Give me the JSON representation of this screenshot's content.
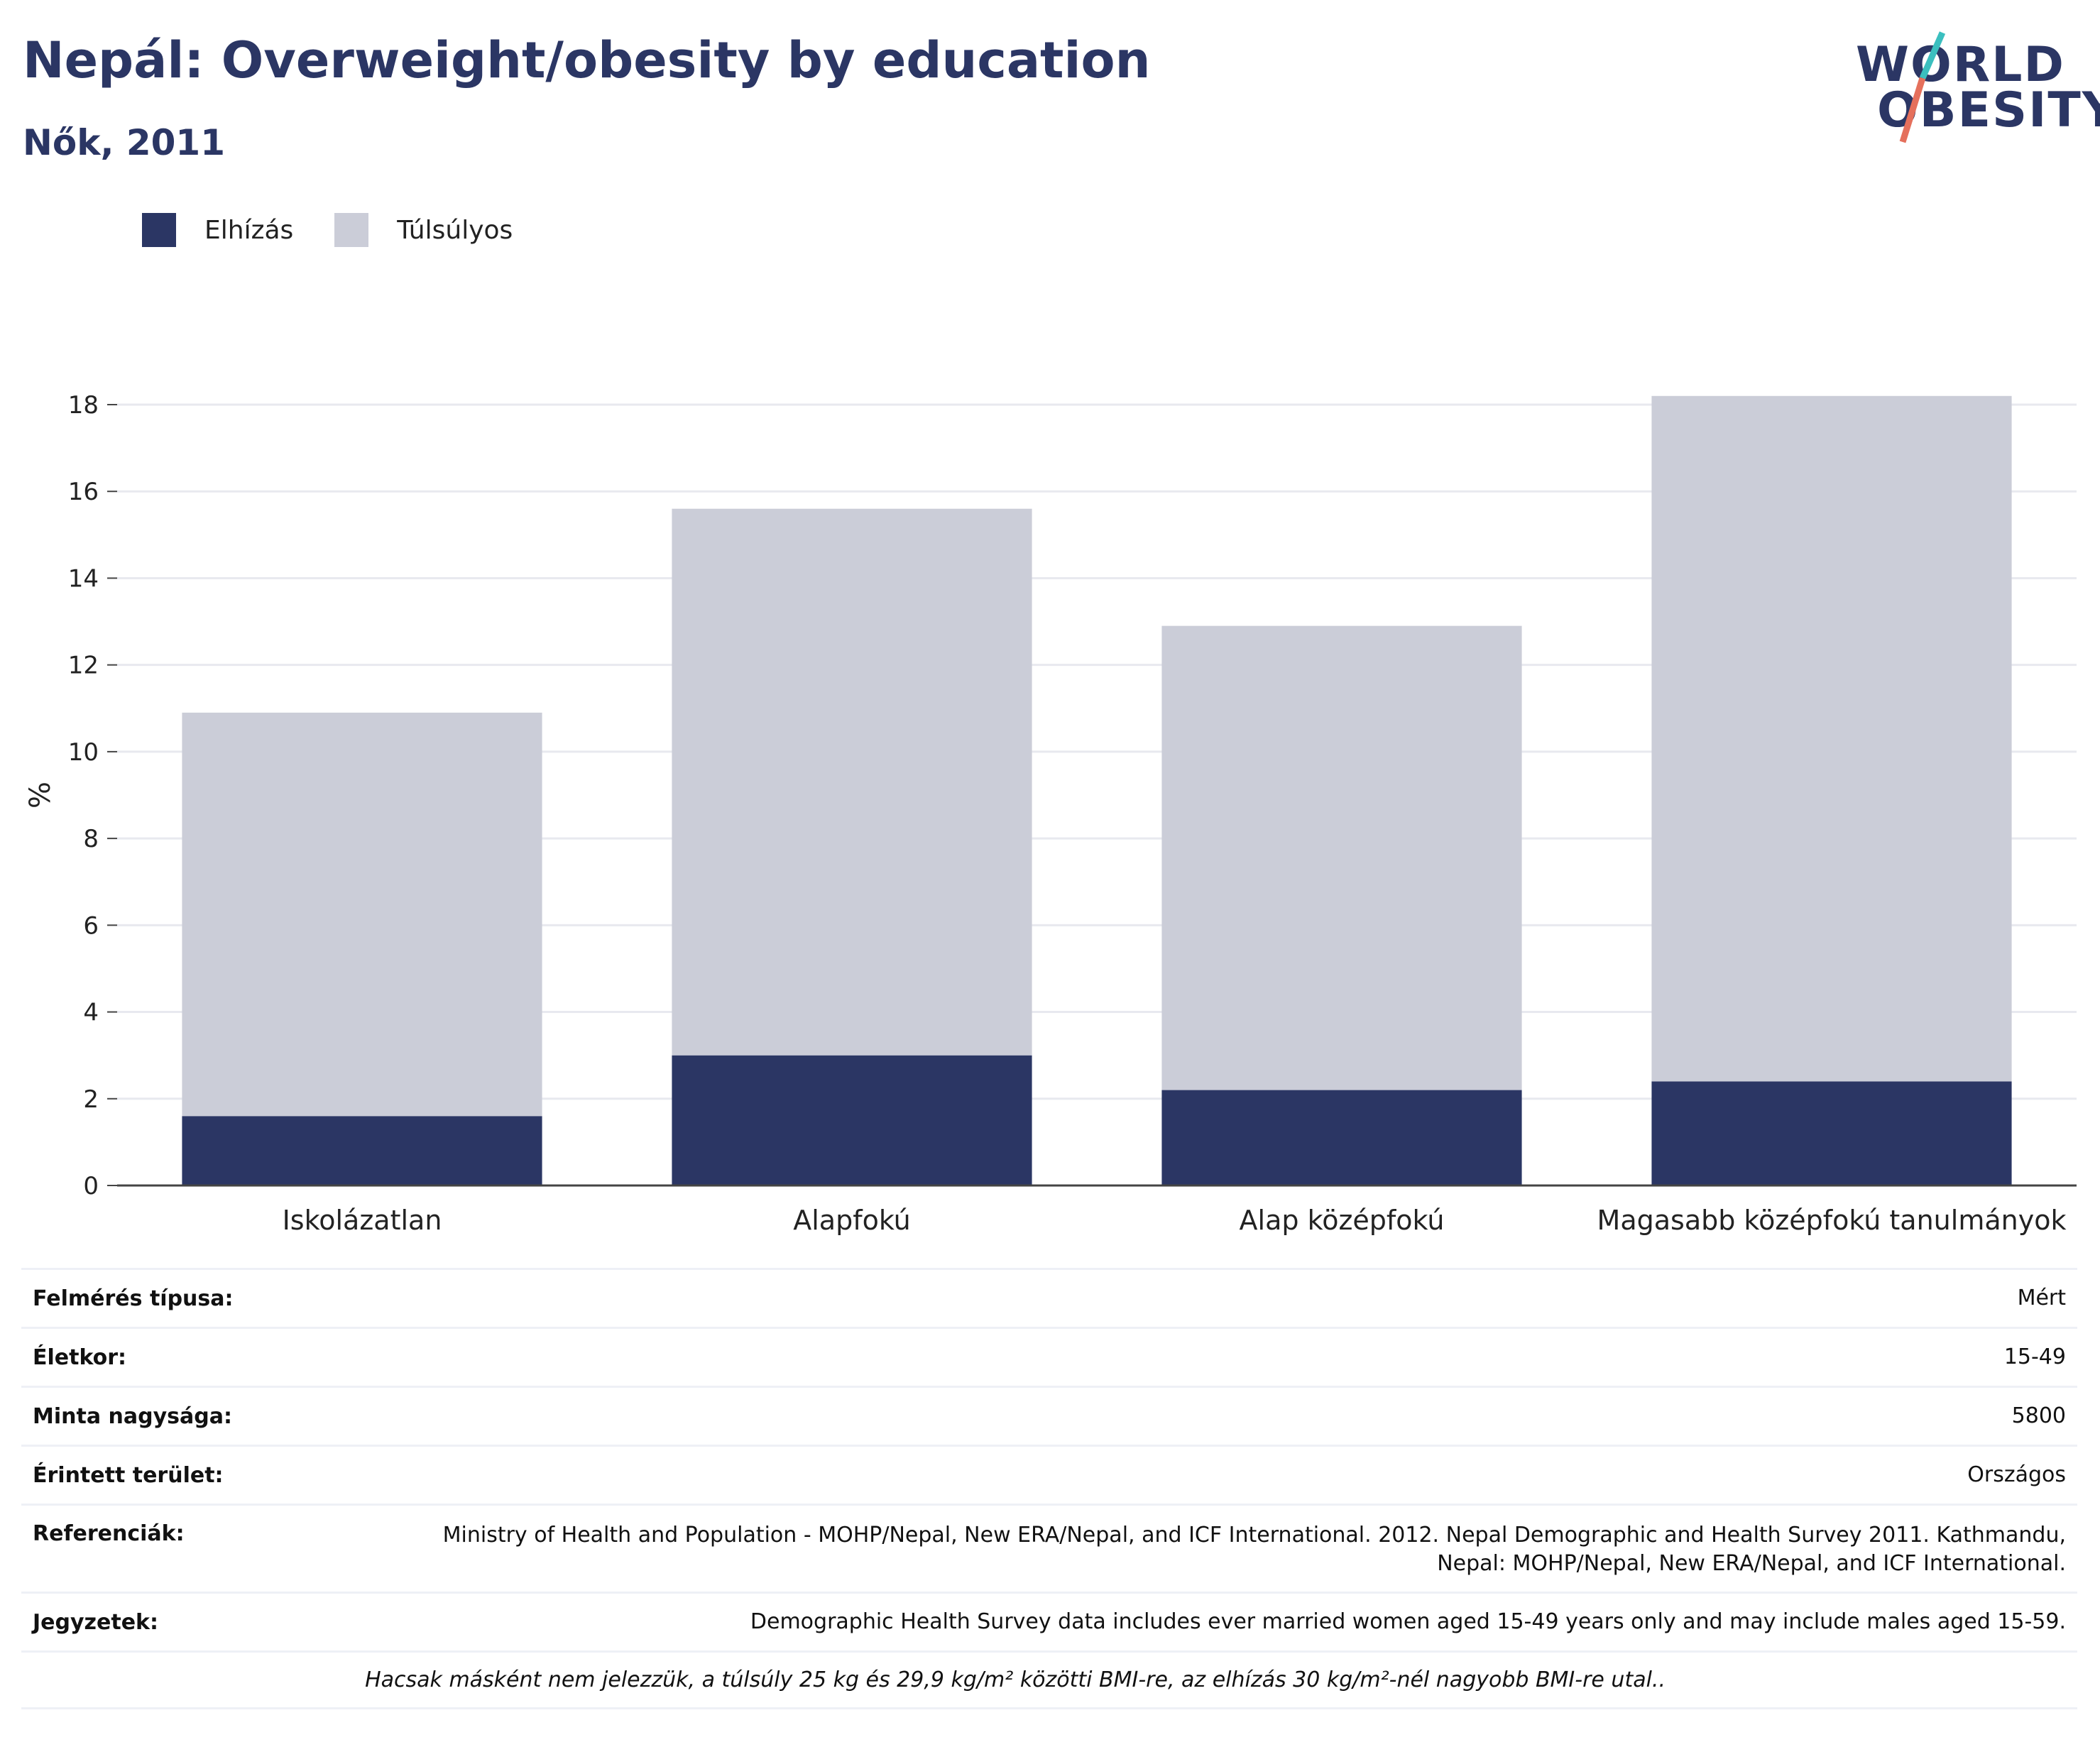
{
  "header": {
    "title": "Nepál: Overweight/obesity by education",
    "subtitle": "Nők, 2011"
  },
  "logo": {
    "line1": "WORLD",
    "line2": "OBESITY"
  },
  "colors": {
    "obesity": "#2b3664",
    "overweight": "#cbcdd8",
    "title": "#2b3664",
    "logo_teal": "#3bbfbf",
    "logo_red": "#e5705c"
  },
  "chart_data": {
    "type": "bar",
    "stacked": true,
    "categories": [
      "Iskolázatlan",
      "Alapfokú",
      "Alap középfokú",
      "Magasabb középfokú tanulmányok"
    ],
    "series": [
      {
        "name": "Elhízás",
        "values": [
          1.6,
          3.0,
          2.2,
          2.4
        ]
      },
      {
        "name": "Túlsúlyos",
        "values": [
          9.3,
          12.6,
          10.7,
          15.8
        ]
      }
    ],
    "ylabel": "%",
    "ylim": [
      0,
      18
    ],
    "yticks": [
      0,
      2,
      4,
      6,
      8,
      10,
      12,
      14,
      16,
      18
    ],
    "grid": true,
    "legend_position": "top-left"
  },
  "info": {
    "rows": [
      {
        "key": "Felmérés típusa:",
        "value": "Mért"
      },
      {
        "key": "Életkor:",
        "value": "15-49"
      },
      {
        "key": "Minta nagysága:",
        "value": "5800"
      },
      {
        "key": "Érintett terület:",
        "value": "Országos"
      },
      {
        "key": "Referenciák:",
        "value": "Ministry of Health and Population - MOHP/Nepal, New ERA/Nepal, and ICF International. 2012. Nepal Demographic and Health Survey 2011. Kathmandu, Nepal: MOHP/Nepal, New ERA/Nepal, and ICF International."
      },
      {
        "key": "Jegyzetek:",
        "value": "Demographic Health Survey data includes ever married women aged 15-49 years only and may include males aged 15-59."
      }
    ],
    "footnote": "Hacsak másként nem jelezzük, a túlsúly 25 kg és 29,9 kg/m² közötti BMI-re, az elhízás 30 kg/m²-nél nagyobb BMI-re utal.."
  }
}
